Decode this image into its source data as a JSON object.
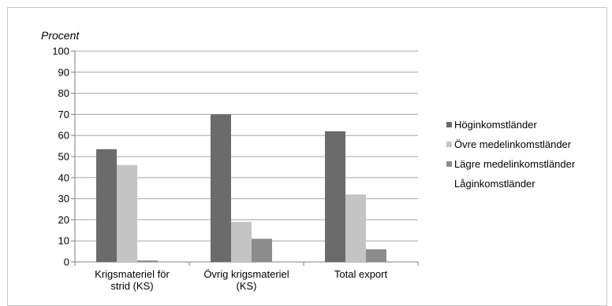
{
  "chart_data": {
    "type": "bar",
    "title": "",
    "ylabel": "Procent",
    "ylim": [
      0,
      100
    ],
    "yticks": [
      "0",
      "10",
      "20",
      "30",
      "40",
      "50",
      "60",
      "70",
      "80",
      "90",
      "100"
    ],
    "categories": [
      [
        "Krigsmateriel för",
        "strid (KS)"
      ],
      [
        "Övrig krigsmateriel",
        "(KS)"
      ],
      [
        "Total export"
      ]
    ],
    "series": [
      {
        "name": "Höginkomstländer",
        "values": [
          53.5,
          70,
          62
        ],
        "color": "#6b6b6b"
      },
      {
        "name": "Övre medelinkomstländer",
        "values": [
          46,
          19,
          32
        ],
        "color": "#c4c4c4"
      },
      {
        "name": "Lägre medelinkomstländer",
        "values": [
          0.7,
          11,
          6
        ],
        "color": "#8c8c8c"
      },
      {
        "name": "Låginkomstländer",
        "values": [
          0,
          0,
          0
        ],
        "color": "#ffffff"
      }
    ],
    "legend": "right",
    "grid": true
  }
}
